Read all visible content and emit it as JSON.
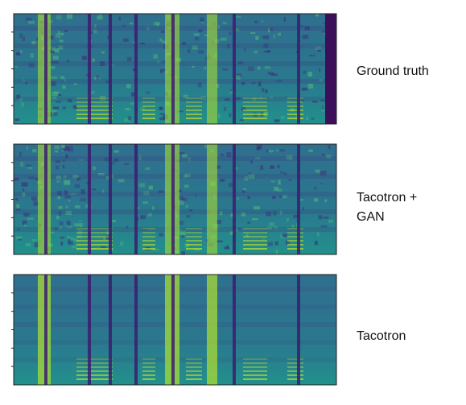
{
  "panels": [
    {
      "label_lines": [
        "Ground truth"
      ]
    },
    {
      "label_lines": [
        "Tacotron +",
        "GAN"
      ]
    },
    {
      "label_lines": [
        "Tacotron"
      ]
    }
  ]
}
